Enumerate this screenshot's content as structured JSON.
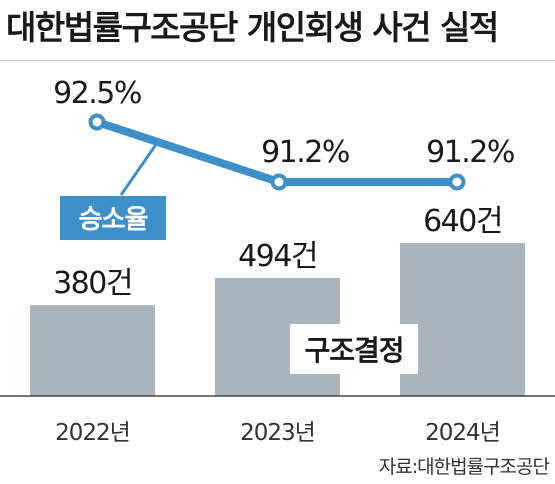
{
  "title": "대한법률구조공단 개인회생 사건 실적",
  "source": "자료:대한법률구조공단",
  "colors": {
    "bar": "#a9b4bc",
    "line": "#3f8fc9",
    "label_box": "#3f8fc9",
    "text": "#1a1a1a"
  },
  "chart_data": {
    "type": "bar",
    "categories": [
      "2022년",
      "2023년",
      "2024년"
    ],
    "series": [
      {
        "name": "구조결정",
        "type": "bar",
        "values": [
          380,
          494,
          640
        ],
        "value_labels": [
          "380건",
          "494건",
          "640건"
        ]
      },
      {
        "name": "승소율",
        "type": "line",
        "values": [
          92.5,
          91.2,
          91.2
        ],
        "value_labels": [
          "92.5%",
          "91.2%",
          "91.2%"
        ]
      }
    ],
    "grid": false,
    "legend": "inline labels"
  }
}
